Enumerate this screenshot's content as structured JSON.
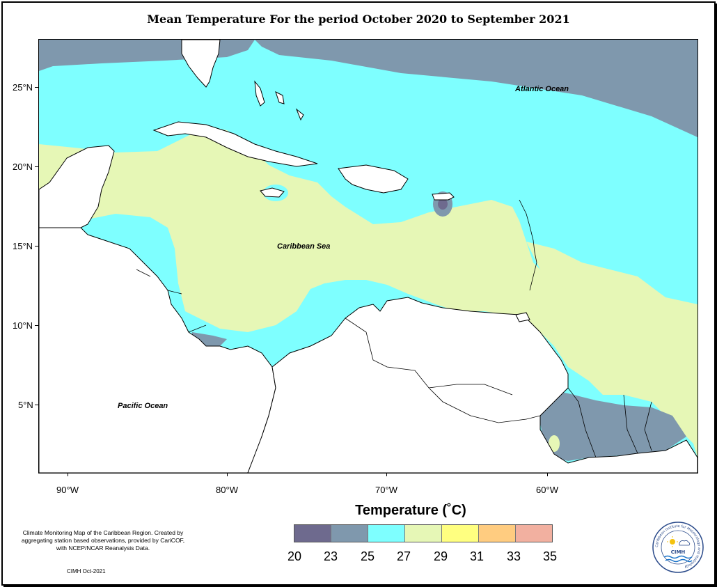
{
  "title": "Mean Temperature For the period October 2020 to September 2021",
  "map": {
    "y_ticks": [
      "25°N",
      "20°N",
      "15°N",
      "10°N",
      "5°N"
    ],
    "x_ticks": [
      "90°W",
      "80°W",
      "70°W",
      "60°W"
    ],
    "labels": {
      "atlantic": "Atlantic Ocean",
      "caribbean": "Caribbean Sea",
      "pacific": "Pacific Ocean"
    },
    "colors": {
      "land": "#ffffff",
      "c20_23": "#6e6a8e",
      "c23_25": "#7f98ad",
      "c25_27": "#7effff",
      "c27_29": "#e6f7b6",
      "outline": "#000000"
    }
  },
  "legend": {
    "title": "Temperature (˚C)",
    "colors": [
      "#6e6a8e",
      "#7f98ad",
      "#7effff",
      "#e6f7b6",
      "#ffff80",
      "#ffcc80",
      "#f2b0a0"
    ],
    "labels": [
      "20",
      "23",
      "25",
      "27",
      "29",
      "31",
      "33",
      "35"
    ]
  },
  "notes": {
    "description": "Climate Monitoring Map of the Caribbean Region. Created by aggregating station based observations, provided by CariCOF, with NCEP/NCAR Reanalysis Data.",
    "credit": "CIMH Oct-2021"
  },
  "logo": {
    "text": "CIMH",
    "ring_text": "Caribbean Institute for Meteorology and Hydrology",
    "icon": "cimh-logo-icon"
  }
}
